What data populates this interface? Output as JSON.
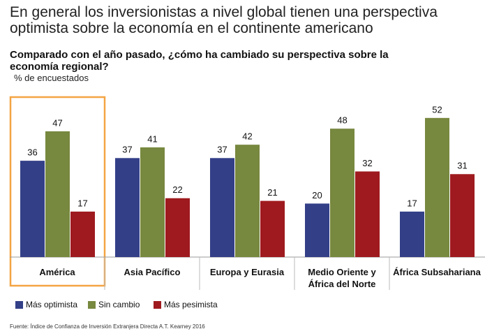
{
  "chart_data": {
    "type": "bar",
    "title": "En general los inversionistas a nivel global tienen una perspectiva optimista sobre la economía en el continente americano",
    "subtitle": "Comparado con el año pasado, ¿cómo ha cambiado su perspectiva sobre la economía regional?",
    "unit_label": "% de encuestados",
    "categories": [
      "América",
      "Asia Pacífico",
      "Europa y Eurasia",
      "Medio Oriente y África del Norte",
      "África Subsahariana"
    ],
    "series": [
      {
        "name": "Más optimista",
        "color": "#333f87",
        "values": [
          36,
          37,
          37,
          20,
          17
        ]
      },
      {
        "name": "Sin cambio",
        "color": "#77883f",
        "values": [
          47,
          41,
          42,
          48,
          52
        ]
      },
      {
        "name": "Más pesimista",
        "color": "#9e1a1e",
        "values": [
          17,
          22,
          21,
          32,
          31
        ]
      }
    ],
    "source": "Fuente: Índice de Confianza de Inversión Extranjera Directa A.T. Kearney 2016"
  }
}
